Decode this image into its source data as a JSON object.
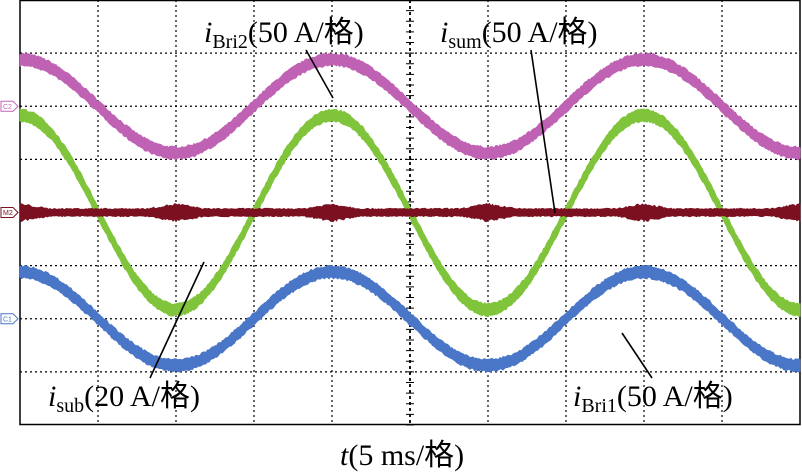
{
  "chart_data": {
    "type": "line",
    "title": "",
    "xlabel": {
      "var": "t",
      "rest": "(5 ms/格)"
    },
    "ylabel": "",
    "grid": true,
    "divisions": {
      "x": 10,
      "y": 8
    },
    "x_unit": "ms",
    "x_per_div": 5,
    "x_range_ms": [
      0,
      50
    ],
    "y_unit": "div",
    "y_range_div": [
      0,
      8
    ],
    "series": [
      {
        "name": "i_Bri2",
        "marker": "C2",
        "color": "#c062b4",
        "scale": "50 A/格",
        "offset_div": 6.0,
        "amplitude_div": 0.88,
        "frequency_hz": 50,
        "phase_deg": -270,
        "noise_band_div": 0.13
      },
      {
        "name": "i_sub",
        "marker": "",
        "color": "#7fc43a",
        "scale": "20 A/格",
        "offset_div": 4.0,
        "amplitude_div": 1.83,
        "frequency_hz": 50,
        "phase_deg": -270,
        "noise_band_div": 0.13
      },
      {
        "name": "i_sum",
        "marker": "M2",
        "color": "#7a1020",
        "scale": "50 A/格",
        "offset_div": 4.0,
        "amplitude_div": 0.0,
        "frequency_hz": 50,
        "phase_deg": 0,
        "noise_band_div": 0.18
      },
      {
        "name": "i_Bri1",
        "marker": "C1",
        "color": "#4a76c8",
        "scale": "50 A/格",
        "offset_div": 2.0,
        "amplitude_div": 0.88,
        "frequency_hz": 50,
        "phase_deg": -270,
        "noise_band_div": 0.13
      }
    ],
    "annotations": [
      {
        "series": "i_Bri2",
        "main": "i",
        "sub": "Bri2",
        "rest": "(50 A/格)"
      },
      {
        "series": "i_sum",
        "main": "i",
        "sub": "sum",
        "rest": "(50 A/格)"
      },
      {
        "series": "i_sub",
        "main": "i",
        "sub": "sub",
        "rest": "(20 A/格)"
      },
      {
        "series": "i_Bri1",
        "main": "i",
        "sub": "Bri1",
        "rest": "(50 A/格)"
      }
    ]
  }
}
